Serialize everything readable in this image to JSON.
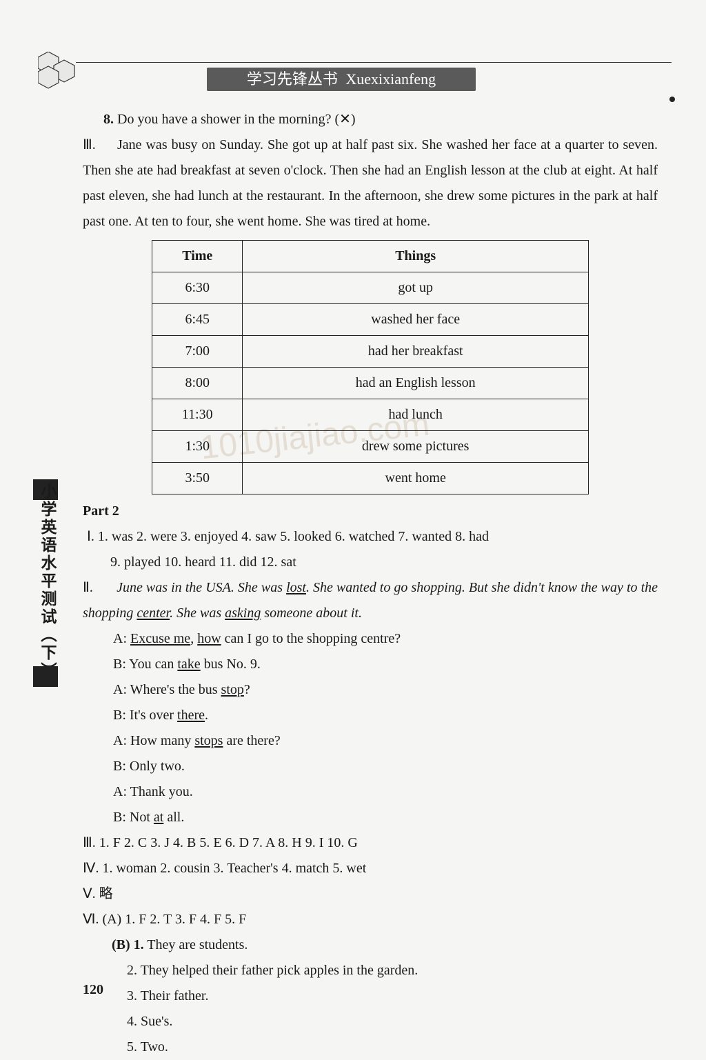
{
  "banner": {
    "zh": "学习先锋丛书",
    "lat": "Xuexixianfeng"
  },
  "q8": {
    "num": "8.",
    "text": "Do you have a shower in the morning?  (✕)"
  },
  "sec3": {
    "roman": "Ⅲ.",
    "text": "Jane was busy on Sunday. She got up at half past six. She washed her face at a quarter to seven. Then she ate had breakfast at seven o'clock. Then she had an English lesson at the club at eight. At half past eleven, she had lunch at the restaurant. In the afternoon, she drew some pictures in the park at half past one. At ten to four, she went home. She was tired at home."
  },
  "table": {
    "headers": [
      "Time",
      "Things"
    ],
    "rows": [
      [
        "6:30",
        "got up"
      ],
      [
        "6:45",
        "washed her face"
      ],
      [
        "7:00",
        "had her breakfast"
      ],
      [
        "8:00",
        "had an English lesson"
      ],
      [
        "11:30",
        "had lunch"
      ],
      [
        "1:30",
        "drew some pictures"
      ],
      [
        "3:50",
        "went home"
      ]
    ]
  },
  "part2_label": "Part 2",
  "p2_I_line1": "Ⅰ. 1. was   2. were   3. enjoyed   4. saw   5. looked   6. watched   7. wanted   8. had",
  "p2_I_line2": "9. played   10. heard   11. did   12. sat",
  "p2_II": {
    "roman": "Ⅱ.",
    "s1a": "June was in the USA. She was ",
    "s1u": "lost",
    "s1b": ". She wanted to go shopping. But she didn't know the way to the shopping ",
    "s2u": "center",
    "s2b": ". She was ",
    "s3u": "asking",
    "s3b": " someone about it."
  },
  "dialog": {
    "a1a": "A: ",
    "a1u1": "Excuse me",
    "a1b": ", ",
    "a1u2": "how",
    "a1c": " can I go to the shopping centre?",
    "b1a": "B: You can ",
    "b1u": "take",
    "b1b": " bus No. 9.",
    "a2a": "A: Where's the bus ",
    "a2u": "stop",
    "a2b": "?",
    "b2a": "B: It's over ",
    "b2u": "there",
    "b2b": ".",
    "a3a": "A: How many ",
    "a3u": "stops",
    "a3b": " are there?",
    "b3": "B: Only two.",
    "a4": "A: Thank you.",
    "b4a": "B: Not ",
    "b4u": "at",
    "b4b": " all."
  },
  "p2_III": "Ⅲ. 1. F   2. C   3. J   4. B   5. E   6. D   7. A   8. H   9. I   10. G",
  "p2_IV": "Ⅳ. 1. woman   2. cousin   3. Teacher's   4. match      5. wet",
  "p2_V": "Ⅴ. 略",
  "p2_VI_A": "Ⅵ. (A) 1. F   2. T   3. F   4. F   5. F",
  "p2_VI_B": {
    "head": "(B) 1. They are students.",
    "i2": "2. They helped their father pick apples in the garden.",
    "i3": "3. Their father.",
    "i4": "4. Sue's.",
    "i5": "5. Two."
  },
  "side_label": "小学英语水平测试︵下︶",
  "page": "120",
  "colors": {
    "header_fill": "#e8e8e6",
    "header_stroke": "#333333"
  }
}
